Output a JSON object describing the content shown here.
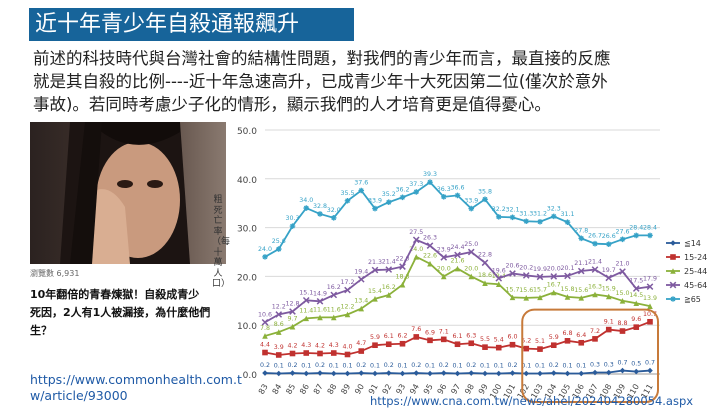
{
  "title": "近十年青少年自殺通報飆升",
  "intro": {
    "line1": "前述的科技時代與台灣社會的結構性問題，對我們的青少年而言，最直接的反應",
    "line2": "就是其自殺的比例----近十年急速高升，已成青少年十大死因第二位(僅次於意外",
    "line3": "事故)。若同時考慮少子化的情形，顯示我們的人才培育更是值得憂心。"
  },
  "article": {
    "views": "瀏覽數 6,931",
    "caption_line1": "10年翻倍的青春煉獄！自殺成青少",
    "caption_line2": "死因，2人有1人被漏接，為什麼他們",
    "caption_line3": "生？",
    "link_line1": "https://www.commonhealth.com.t",
    "link_line2": "w/article/93000"
  },
  "source_link": "https://www.cna.com.tw/news/ahel/202404280054.aspx",
  "chart_data": {
    "type": "line",
    "ylabel": "粗死亡率（每十萬人口）",
    "ylim": [
      0,
      50
    ],
    "yticks": [
      "0.0",
      "10.0",
      "20.0",
      "30.0",
      "40.0",
      "50.0"
    ],
    "x": [
      "83",
      "84",
      "85",
      "86",
      "87",
      "88",
      "89",
      "90",
      "91",
      "92",
      "93",
      "94",
      "95",
      "96",
      "97",
      "98",
      "99",
      "100",
      "101",
      "102",
      "103",
      "104",
      "105",
      "106",
      "107",
      "108",
      "109",
      "110",
      "111"
    ],
    "legend_position": "right",
    "series": [
      {
        "name": "≦14",
        "color": "#2a5b9a",
        "marker": "diamond",
        "values": [
          0.2,
          0.1,
          0.2,
          0.1,
          0.2,
          0.1,
          0.1,
          0.2,
          0.1,
          0.2,
          0.1,
          0.2,
          0.1,
          0.2,
          0.1,
          0.2,
          0.1,
          0.1,
          0.2,
          0.1,
          0.1,
          0.2,
          0.1,
          0.1,
          0.3,
          0.3,
          0.7,
          0.5,
          0.7
        ]
      },
      {
        "name": "15-24",
        "color": "#c0312f",
        "marker": "square",
        "values": [
          4.4,
          3.9,
          4.2,
          4.3,
          4.2,
          4.3,
          4.0,
          4.7,
          5.9,
          6.1,
          6.2,
          7.6,
          6.9,
          7.1,
          6.1,
          6.3,
          5.5,
          5.4,
          6.0,
          5.2,
          5.1,
          5.9,
          6.8,
          6.4,
          7.2,
          9.1,
          8.8,
          9.6,
          10.7
        ]
      },
      {
        "name": "25-44",
        "color": "#8bb13a",
        "marker": "triangle",
        "values": [
          7.8,
          8.6,
          9.7,
          11.4,
          11.6,
          11.6,
          12.2,
          13.4,
          15.4,
          16.2,
          18.3,
          24.0,
          22.6,
          20.0,
          21.6,
          20.0,
          18.6,
          18.4,
          15.7,
          15.6,
          15.7,
          16.7,
          15.8,
          15.6,
          16.3,
          15.9,
          15.0,
          14.5,
          13.9
        ]
      },
      {
        "name": "45-64",
        "color": "#7e5aa0",
        "marker": "x",
        "values": [
          10.6,
          12.2,
          12.8,
          15.1,
          14.9,
          16.2,
          17.2,
          19.4,
          21.3,
          21.4,
          22.0,
          27.5,
          26.3,
          23.9,
          24.4,
          25.0,
          22.8,
          19.6,
          20.6,
          20.2,
          19.9,
          20.0,
          20.1,
          21.1,
          21.4,
          19.7,
          21.0,
          17.5,
          17.9
        ]
      },
      {
        "name": "≧65",
        "color": "#36a2c7",
        "marker": "star",
        "values": [
          24.0,
          25.6,
          30.3,
          34.0,
          32.8,
          32.0,
          35.5,
          37.6,
          33.9,
          35.2,
          36.2,
          37.3,
          39.3,
          36.3,
          36.6,
          33.9,
          35.8,
          32.2,
          32.1,
          31.3,
          31.2,
          32.3,
          31.1,
          27.8,
          26.7,
          26.6,
          27.6,
          28.4,
          28.4
        ]
      }
    ]
  }
}
